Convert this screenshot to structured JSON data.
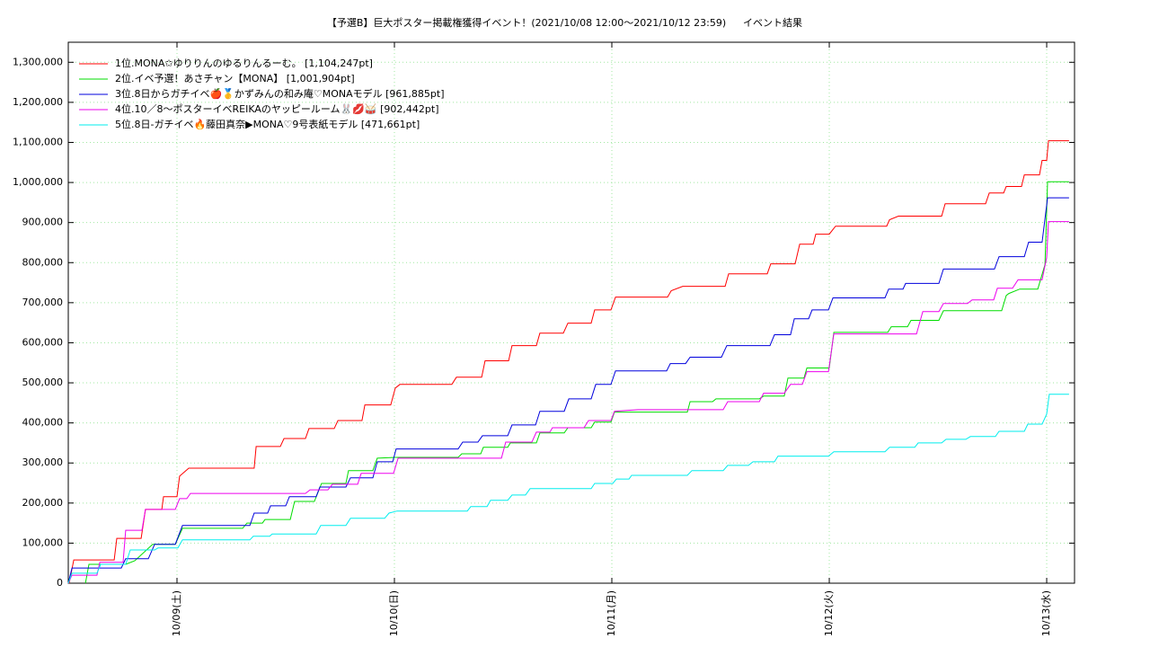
{
  "chart_data": {
    "type": "line",
    "title": "【予選B】巨大ポスター掲載権獲得イベント！(2021/10/08 12:00〜2021/10/12 23:59)",
    "subtitle": "イベント結果",
    "xlim": [
      8.5,
      13.128
    ],
    "xticks": [
      {
        "value": 9,
        "label": "10/09(土)"
      },
      {
        "value": 10,
        "label": "10/10(日)"
      },
      {
        "value": 11,
        "label": "10/11(月)"
      },
      {
        "value": 12,
        "label": "10/12(火)"
      },
      {
        "value": 13,
        "label": "10/13(水)"
      }
    ],
    "ylim": [
      0,
      1350000
    ],
    "yticks": [
      0,
      {
        "value": 100000,
        "label": "100,000"
      },
      {
        "value": 200000,
        "label": "200,000"
      },
      {
        "value": 300000,
        "label": "300,000"
      },
      {
        "value": 400000,
        "label": "400,000"
      },
      {
        "value": 500000,
        "label": "500,000"
      },
      {
        "value": 600000,
        "label": "600,000"
      },
      {
        "value": 700000,
        "label": "700,000"
      },
      {
        "value": 800000,
        "label": "800,000"
      },
      {
        "value": 900000,
        "label": "900,000"
      },
      {
        "value": 1000000,
        "label": "1,000,000"
      },
      {
        "value": 1100000,
        "label": "1,100,000"
      },
      {
        "value": 1200000,
        "label": "1,200,000"
      },
      {
        "value": 1300000,
        "label": "1,300,000"
      }
    ],
    "grid": true,
    "legend": "top-left",
    "series": [
      {
        "name": "1位.MONA✩ゆりりんのゆるりんるーむ。 [1,104,247pt]",
        "color": "#ff0000",
        "x": [
          8.504,
          8.525,
          8.711,
          8.723,
          8.835,
          8.855,
          8.93,
          8.938,
          9.0,
          9.012,
          9.054,
          9.355,
          9.364,
          9.475,
          9.492,
          9.591,
          9.607,
          9.723,
          9.74,
          9.851,
          9.864,
          9.983,
          10.004,
          10.025,
          10.264,
          10.285,
          10.401,
          10.417,
          10.525,
          10.541,
          10.653,
          10.669,
          10.777,
          10.798,
          10.905,
          10.921,
          10.996,
          11.017,
          11.256,
          11.273,
          11.326,
          11.521,
          11.537,
          11.715,
          11.731,
          11.843,
          11.864,
          11.926,
          11.938,
          12.0,
          12.029,
          12.264,
          12.277,
          12.318,
          12.517,
          12.533,
          12.719,
          12.736,
          12.802,
          12.814,
          12.884,
          12.897,
          12.967,
          12.979,
          13.0,
          13.008,
          13.103
        ],
        "values": [
          0,
          58000,
          58000,
          112000,
          112000,
          184000,
          184000,
          216000,
          216000,
          267000,
          287000,
          287000,
          341000,
          341000,
          361000,
          361000,
          386000,
          386000,
          406000,
          406000,
          445000,
          445000,
          487000,
          496000,
          496000,
          514000,
          514000,
          555000,
          555000,
          593000,
          593000,
          624000,
          624000,
          649000,
          649000,
          682000,
          682000,
          714000,
          714000,
          730000,
          741000,
          741000,
          772000,
          772000,
          797000,
          797000,
          846000,
          846000,
          871000,
          871000,
          891000,
          891000,
          907000,
          916000,
          916000,
          947000,
          947000,
          974000,
          974000,
          990000,
          990000,
          1019000,
          1019000,
          1055000,
          1055000,
          1104247,
          1104247
        ]
      },
      {
        "name": "2位.イベ予選！あさチャン【MONA】 [1,001,904pt]",
        "color": "#00dd00",
        "x": [
          8.579,
          8.595,
          8.764,
          8.806,
          8.888,
          8.992,
          9.025,
          9.302,
          9.322,
          9.393,
          9.405,
          9.521,
          9.541,
          9.632,
          9.665,
          9.777,
          9.789,
          9.901,
          9.921,
          10.004,
          10.293,
          10.31,
          10.397,
          10.409,
          10.521,
          10.533,
          10.653,
          10.669,
          10.781,
          10.798,
          10.905,
          10.921,
          10.996,
          11.012,
          11.347,
          11.36,
          11.463,
          11.479,
          11.678,
          11.698,
          11.793,
          11.81,
          11.884,
          11.897,
          12.0,
          12.021,
          12.269,
          12.285,
          12.36,
          12.376,
          12.504,
          12.525,
          12.793,
          12.814,
          12.826,
          12.876,
          12.959,
          12.992,
          13.004,
          13.103
        ],
        "values": [
          0,
          47000,
          47000,
          56000,
          97000,
          97000,
          137000,
          137000,
          150000,
          150000,
          159000,
          159000,
          204000,
          204000,
          249000,
          249000,
          281000,
          281000,
          312000,
          314000,
          314000,
          323000,
          323000,
          339000,
          339000,
          350000,
          350000,
          375000,
          375000,
          388000,
          388000,
          402000,
          402000,
          427000,
          427000,
          453000,
          453000,
          460000,
          460000,
          467000,
          467000,
          512000,
          512000,
          537000,
          537000,
          626000,
          626000,
          640000,
          640000,
          656000,
          656000,
          680000,
          680000,
          718000,
          723000,
          734000,
          734000,
          795000,
          1001904,
          1001904
        ]
      },
      {
        "name": "3位.8日からガチイベ🍎🥇かずみんの和み庵♡MONAモデル [961,885pt]",
        "color": "#0000dd",
        "x": [
          8.5,
          8.517,
          8.744,
          8.764,
          8.868,
          8.897,
          8.992,
          9.025,
          9.335,
          9.355,
          9.417,
          9.43,
          9.5,
          9.517,
          9.64,
          9.657,
          9.777,
          9.798,
          9.901,
          9.921,
          9.992,
          10.008,
          10.293,
          10.314,
          10.384,
          10.405,
          10.521,
          10.541,
          10.649,
          10.669,
          10.781,
          10.802,
          10.905,
          10.926,
          10.996,
          11.017,
          11.252,
          11.269,
          11.339,
          11.36,
          11.504,
          11.529,
          11.727,
          11.748,
          11.822,
          11.839,
          11.905,
          11.921,
          11.996,
          12.017,
          12.256,
          12.273,
          12.339,
          12.351,
          12.504,
          12.525,
          12.76,
          12.781,
          12.897,
          12.917,
          12.979,
          13.004,
          13.103
        ],
        "values": [
          0,
          38000,
          38000,
          61000,
          61000,
          97000,
          97000,
          144000,
          144000,
          175000,
          175000,
          193000,
          193000,
          216000,
          216000,
          240000,
          240000,
          263000,
          263000,
          303000,
          303000,
          335000,
          335000,
          352000,
          352000,
          368000,
          368000,
          395000,
          395000,
          429000,
          429000,
          460000,
          460000,
          496000,
          496000,
          530000,
          530000,
          548000,
          548000,
          564000,
          564000,
          593000,
          593000,
          620000,
          620000,
          660000,
          660000,
          682000,
          682000,
          712000,
          712000,
          734000,
          734000,
          748000,
          748000,
          784000,
          784000,
          815000,
          815000,
          851000,
          851000,
          961885,
          961885
        ]
      },
      {
        "name": "4位.10／8〜ポスターイベREIKAのヤッピールーム🐰💋🥁 [902,442pt]",
        "color": "#ee00ee",
        "x": [
          8.5,
          8.517,
          8.632,
          8.645,
          8.752,
          8.764,
          8.839,
          8.855,
          8.992,
          9.012,
          9.045,
          9.062,
          9.591,
          9.612,
          9.694,
          9.715,
          9.831,
          9.847,
          9.996,
          10.017,
          10.492,
          10.512,
          10.632,
          10.653,
          10.715,
          10.727,
          10.872,
          10.893,
          10.996,
          11.012,
          11.12,
          11.512,
          11.533,
          11.678,
          11.698,
          11.793,
          11.822,
          11.876,
          11.897,
          11.996,
          12.021,
          12.401,
          12.43,
          12.504,
          12.525,
          12.636,
          12.657,
          12.756,
          12.773,
          12.843,
          12.868,
          12.979,
          13.0,
          13.008,
          13.103
        ],
        "values": [
          0,
          20000,
          20000,
          52000,
          52000,
          132000,
          132000,
          184000,
          184000,
          211000,
          211000,
          224000,
          224000,
          233000,
          233000,
          247000,
          247000,
          274000,
          274000,
          312000,
          312000,
          352000,
          352000,
          377000,
          377000,
          388000,
          388000,
          406000,
          406000,
          429000,
          433000,
          433000,
          453000,
          453000,
          474000,
          474000,
          496000,
          496000,
          528000,
          528000,
          622000,
          622000,
          678000,
          678000,
          698000,
          698000,
          707000,
          707000,
          736000,
          736000,
          757000,
          757000,
          813000,
          902442,
          902442
        ]
      },
      {
        "name": "5位.8日-ガチイベ🔥藤田真奈▶MONA♡9号表紙モデル [471,661pt]",
        "color": "#00eeee",
        "x": [
          8.5,
          8.517,
          8.632,
          8.649,
          8.764,
          8.785,
          8.897,
          8.913,
          9.004,
          9.025,
          9.335,
          9.351,
          9.426,
          9.438,
          9.64,
          9.661,
          9.777,
          9.798,
          9.955,
          9.975,
          10.012,
          10.335,
          10.351,
          10.426,
          10.442,
          10.521,
          10.541,
          10.603,
          10.624,
          10.905,
          10.921,
          11.004,
          11.021,
          11.079,
          11.091,
          11.347,
          11.368,
          11.512,
          11.533,
          11.628,
          11.649,
          11.748,
          11.764,
          11.996,
          12.021,
          12.256,
          12.277,
          12.393,
          12.409,
          12.517,
          12.537,
          12.628,
          12.649,
          12.764,
          12.781,
          12.897,
          12.913,
          12.979,
          13.0,
          13.012,
          13.103
        ],
        "values": [
          0,
          25000,
          25000,
          47000,
          47000,
          83000,
          83000,
          88000,
          88000,
          108000,
          108000,
          117000,
          117000,
          123000,
          123000,
          144000,
          144000,
          162000,
          162000,
          175000,
          180000,
          180000,
          191000,
          191000,
          207000,
          207000,
          220000,
          220000,
          236000,
          236000,
          249000,
          249000,
          260000,
          260000,
          269000,
          269000,
          281000,
          281000,
          294000,
          294000,
          303000,
          303000,
          317000,
          317000,
          328000,
          328000,
          339000,
          339000,
          350000,
          350000,
          359000,
          359000,
          366000,
          366000,
          379000,
          379000,
          397000,
          397000,
          422000,
          471661,
          471661
        ]
      }
    ]
  }
}
